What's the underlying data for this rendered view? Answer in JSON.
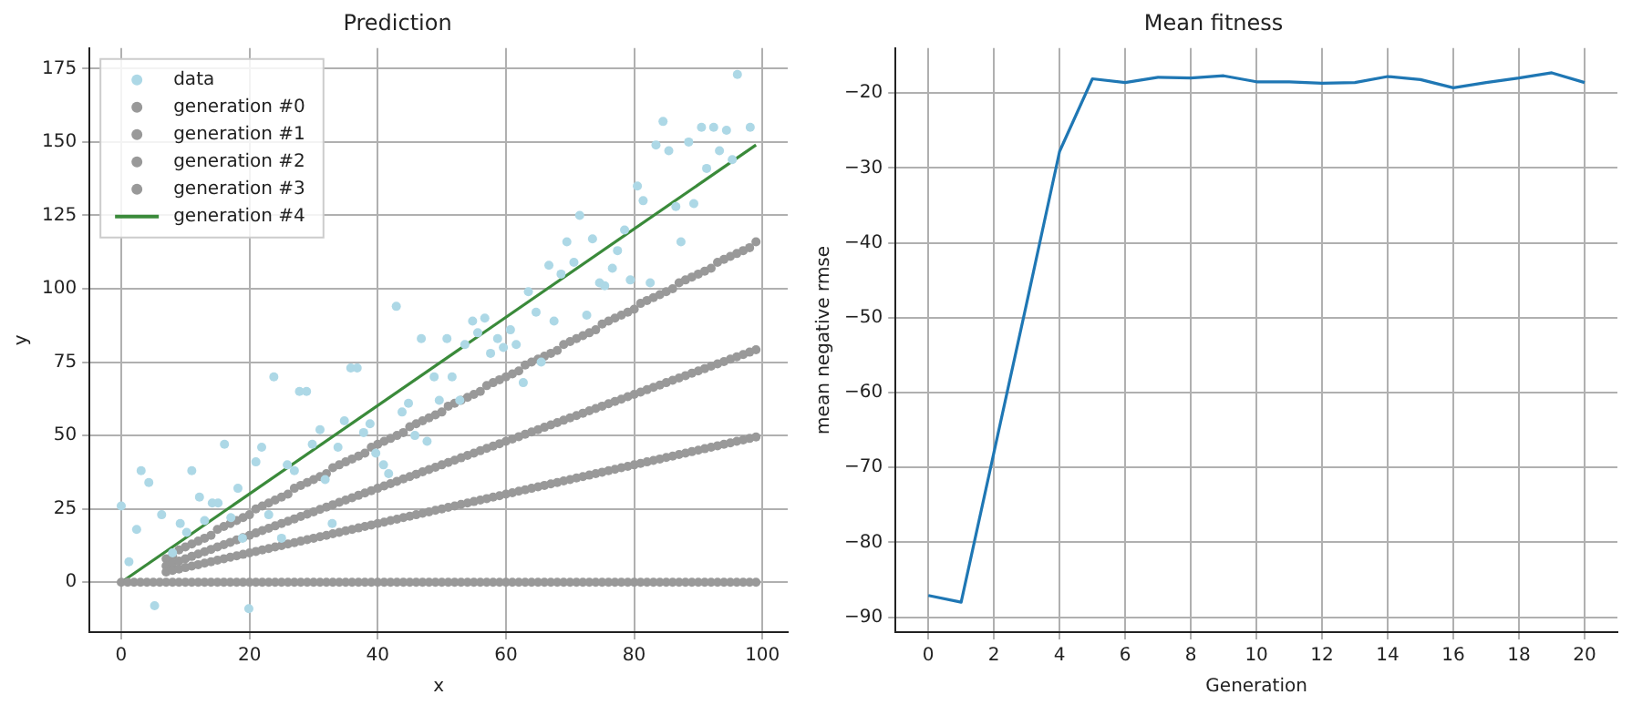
{
  "chart_data": [
    {
      "type": "scatter",
      "title": "Prediction",
      "xlabel": "x",
      "ylabel": "y",
      "legend": "top left",
      "grid": true,
      "xlim": [
        -4.95,
        103.95
      ],
      "ylim": [
        -17,
        182
      ],
      "xticks": [
        0,
        20,
        40,
        60,
        80,
        100
      ],
      "yticks": [
        0,
        25,
        50,
        75,
        100,
        125,
        150,
        175
      ],
      "x": [
        0,
        1,
        2,
        3,
        4,
        5,
        6,
        7,
        8,
        9,
        10,
        11,
        12,
        13,
        14,
        15,
        16,
        17,
        18,
        19,
        20,
        21,
        22,
        23,
        24,
        25,
        26,
        27,
        28,
        29,
        30,
        31,
        32,
        33,
        34,
        35,
        36,
        37,
        38,
        39,
        40,
        41,
        42,
        43,
        44,
        45,
        46,
        47,
        48,
        49,
        50,
        51,
        52,
        53,
        54,
        55,
        56,
        57,
        58,
        59,
        60,
        61,
        62,
        63,
        64,
        65,
        66,
        67,
        68,
        69,
        70,
        71,
        72,
        73,
        74,
        75,
        76,
        77,
        78,
        79,
        80,
        81,
        82,
        83,
        84,
        85,
        86,
        87,
        88,
        89,
        90,
        91,
        92,
        93,
        94,
        95,
        96,
        97,
        98,
        99
      ],
      "series": [
        {
          "name": "data",
          "marker": "circle",
          "color": "#add8e6",
          "x": [
            0,
            1.2,
            2.4,
            3.1,
            4.3,
            5.2,
            6.3,
            8,
            9.2,
            10.2,
            11,
            12.2,
            13,
            14.2,
            15.1,
            16.1,
            17.1,
            18.2,
            18.9,
            19.9,
            21,
            21.9,
            23,
            23.8,
            25,
            25.9,
            27,
            27.8,
            28.9,
            29.8,
            31,
            31.8,
            32.9,
            33.8,
            34.8,
            35.8,
            36.8,
            37.8,
            38.8,
            39.7,
            40.9,
            41.7,
            42.9,
            43.8,
            44.8,
            45.8,
            46.8,
            47.7,
            48.8,
            49.6,
            50.8,
            51.6,
            52.8,
            53.6,
            54.8,
            55.6,
            56.7,
            57.6,
            58.7,
            59.6,
            60.7,
            61.6,
            62.7,
            63.5,
            64.7,
            65.5,
            66.7,
            67.5,
            68.6,
            69.5,
            70.6,
            71.5,
            72.6,
            73.5,
            74.6,
            75.4,
            76.6,
            77.4,
            78.5,
            79.4,
            80.5,
            81.4,
            82.5,
            83.4,
            84.5,
            85.4,
            86.5,
            87.3,
            88.5,
            89.3,
            90.5,
            91.3,
            92.4,
            93.3,
            94.4,
            95.3,
            96.1,
            98.1
          ],
          "values": [
            26,
            7,
            18,
            38,
            34,
            -8,
            23,
            10,
            20,
            17,
            38,
            29,
            21,
            27,
            27,
            47,
            22,
            32,
            15,
            -9,
            41,
            46,
            23,
            70,
            15,
            40,
            38,
            65,
            65,
            47,
            52,
            35,
            20,
            46,
            55,
            73,
            73,
            51,
            54,
            44,
            40,
            37,
            94,
            58,
            61,
            50,
            83,
            48,
            70,
            62,
            83,
            70,
            62,
            81,
            89,
            85,
            90,
            78,
            83,
            80,
            86,
            81,
            68,
            99,
            92,
            75,
            108,
            89,
            105,
            116,
            109,
            125,
            91,
            117,
            102,
            101,
            107,
            113,
            120,
            103,
            135,
            130,
            102,
            149,
            157,
            147,
            128,
            116,
            150,
            129,
            155,
            141,
            155,
            147,
            154,
            144,
            173,
            155
          ]
        },
        {
          "name": "generation #0",
          "marker": "circle",
          "color": "#999999",
          "values": [
            0,
            0,
            0,
            0,
            0,
            0,
            0,
            0,
            0,
            0,
            0,
            0,
            0,
            0,
            0,
            0,
            0,
            0,
            0,
            0,
            0,
            0,
            0,
            0,
            0,
            0,
            0,
            0,
            0,
            0,
            0,
            0,
            0,
            0,
            0,
            0,
            0,
            0,
            0,
            0,
            0,
            0,
            0,
            0,
            0,
            0,
            0,
            0,
            0,
            0,
            0,
            0,
            0,
            0,
            0,
            0,
            0,
            0,
            0,
            0,
            0,
            0,
            0,
            0,
            0,
            0,
            0,
            0,
            0,
            0,
            0,
            0,
            0,
            0,
            0,
            0,
            0,
            0,
            0,
            0,
            0,
            0,
            0,
            0,
            0,
            0,
            0,
            0,
            0,
            0,
            0,
            0,
            0,
            0,
            0,
            0,
            0,
            0,
            0,
            0
          ]
        },
        {
          "name": "generation #1",
          "marker": "circle",
          "color": "#999999",
          "values": [
            null,
            null,
            null,
            null,
            null,
            null,
            null,
            3.5,
            4,
            4.5,
            5,
            5.5,
            6,
            6.5,
            7,
            7.5,
            8,
            8.5,
            9,
            9.5,
            10,
            10.5,
            11,
            11.5,
            12,
            12.5,
            13,
            13.5,
            14,
            14.5,
            15,
            15.5,
            16,
            16.5,
            17,
            17.5,
            18,
            18.5,
            19,
            19.5,
            20,
            20.5,
            21,
            21.5,
            22,
            22.5,
            23,
            23.5,
            24,
            24.5,
            25,
            25.5,
            26,
            26.5,
            27,
            27.5,
            28,
            28.5,
            29,
            29.5,
            30,
            30.5,
            31,
            31.5,
            32,
            32.5,
            33,
            33.5,
            34,
            34.5,
            35,
            35.5,
            36,
            36.5,
            37,
            37.5,
            38,
            38.5,
            39,
            39.5,
            40,
            40.5,
            41,
            41.5,
            42,
            42.5,
            43,
            43.5,
            44,
            44.5,
            45,
            45.5,
            46,
            46.5,
            47,
            47.5,
            48,
            48.5,
            49,
            49.5
          ]
        },
        {
          "name": "generation #2",
          "marker": "circle",
          "color": "#999999",
          "values": [
            null,
            null,
            null,
            null,
            null,
            null,
            null,
            5.6,
            6.4,
            7.2,
            8,
            8.8,
            9.6,
            10.4,
            11.2,
            12,
            12.8,
            13.6,
            14.4,
            15.2,
            16,
            16.8,
            17.6,
            18.4,
            19.2,
            20,
            20.8,
            21.6,
            22.4,
            23.2,
            24,
            24.8,
            25.6,
            26.4,
            27.2,
            28,
            28.8,
            29.6,
            30.4,
            31.2,
            32,
            32.8,
            33.6,
            34.4,
            35.2,
            36,
            36.8,
            37.6,
            38.4,
            39.2,
            40,
            40.8,
            41.6,
            42.4,
            43.2,
            44,
            44.8,
            45.6,
            46.4,
            47.2,
            48,
            48.8,
            49.6,
            50.4,
            51.2,
            52,
            52.8,
            53.6,
            54.4,
            55.2,
            56,
            56.8,
            57.6,
            58.4,
            59.2,
            60,
            60.8,
            61.6,
            62.4,
            63.2,
            64,
            64.8,
            65.6,
            66.4,
            67.2,
            68,
            68.8,
            69.6,
            70.4,
            71.2,
            72,
            72.8,
            73.6,
            74.4,
            75.2,
            76,
            76.8,
            77.6,
            78.4,
            79.2
          ]
        },
        {
          "name": "generation #3",
          "marker": "circle",
          "color": "#999999",
          "values": [
            null,
            null,
            null,
            null,
            null,
            null,
            null,
            8,
            9,
            11,
            12,
            13,
            14,
            15,
            16,
            18,
            19,
            20,
            21,
            22,
            23,
            25,
            26,
            27,
            28,
            29,
            30,
            32,
            33,
            34,
            35,
            36,
            37,
            39,
            40,
            41,
            42,
            43,
            44,
            46,
            47,
            48,
            49,
            50,
            51,
            53,
            54,
            55,
            56,
            57,
            58,
            60,
            61,
            62,
            63,
            64,
            65,
            67,
            68,
            69,
            70,
            71,
            72,
            74,
            75,
            76,
            77,
            78,
            79,
            81,
            82,
            83,
            84,
            85,
            86,
            88,
            89,
            90,
            91,
            92,
            93,
            95,
            96,
            97,
            98,
            99,
            100,
            102,
            103,
            104,
            105,
            106,
            107,
            109,
            110,
            111,
            112,
            113,
            114,
            116
          ]
        },
        {
          "name": "generation #4",
          "type": "line",
          "marker": "none",
          "color": "#3a8a3a",
          "x": [
            0,
            99
          ],
          "values": [
            0,
            149
          ]
        }
      ]
    },
    {
      "type": "line",
      "title": "Mean fitness",
      "xlabel": "Generation",
      "ylabel": "mean negative rmse",
      "grid": true,
      "marker": "none",
      "xlim": [
        -1,
        21
      ],
      "ylim": [
        -92,
        -14
      ],
      "xticks": [
        0,
        2,
        4,
        6,
        8,
        10,
        12,
        14,
        16,
        18,
        20
      ],
      "yticks": [
        {
          "value": -90,
          "label": "−90"
        },
        {
          "value": -80,
          "label": "−80"
        },
        {
          "value": -70,
          "label": "−70"
        },
        {
          "value": -60,
          "label": "−60"
        },
        {
          "value": -50,
          "label": "−50"
        },
        {
          "value": -40,
          "label": "−40"
        },
        {
          "value": -30,
          "label": "−30"
        },
        {
          "value": -20,
          "label": "−20"
        }
      ],
      "x": [
        0,
        1,
        2,
        3,
        4,
        5,
        6,
        7,
        8,
        9,
        10,
        11,
        12,
        13,
        14,
        15,
        16,
        17,
        18,
        19,
        20
      ],
      "series": [
        {
          "color": "#1f77b4",
          "values": [
            -87.1,
            -88.0,
            -68,
            -48,
            -27.8,
            -18.1,
            -18.6,
            -17.9,
            -18.0,
            -17.7,
            -18.5,
            -18.5,
            -18.7,
            -18.6,
            -17.8,
            -18.2,
            -19.3,
            -18.6,
            -18.0,
            -17.3,
            -18.6
          ]
        }
      ]
    }
  ]
}
